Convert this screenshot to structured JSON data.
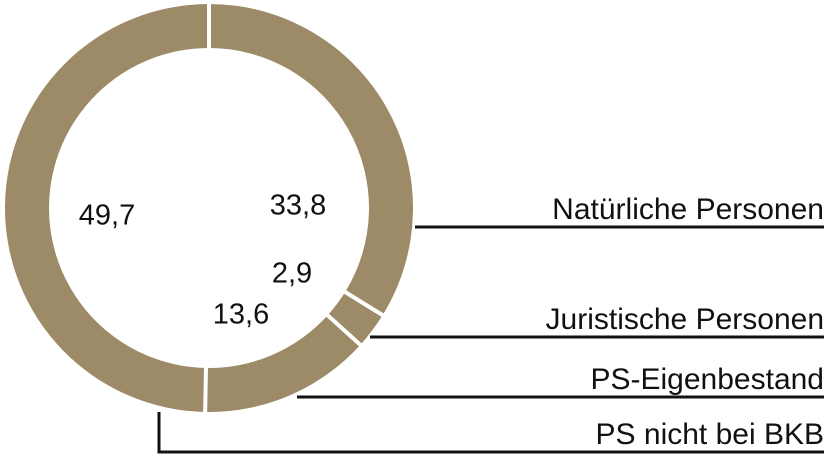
{
  "chart_data": {
    "type": "pie",
    "donut": true,
    "decimal_separator": ",",
    "series": [
      {
        "name": "Natürliche Personen",
        "label": "33,8",
        "value": 33.8
      },
      {
        "name": "Juristische Personen",
        "label": "2,9",
        "value": 2.9
      },
      {
        "name": "PS-Eigenbestand",
        "label": "13,6",
        "value": 13.6
      },
      {
        "name": "PS nicht bei BKB",
        "label": "49,7",
        "value": 49.7
      }
    ],
    "legend_placement": "right",
    "colors": {
      "slice": "#9d8a66",
      "separator": "#ffffff",
      "leader": "#111111"
    }
  }
}
